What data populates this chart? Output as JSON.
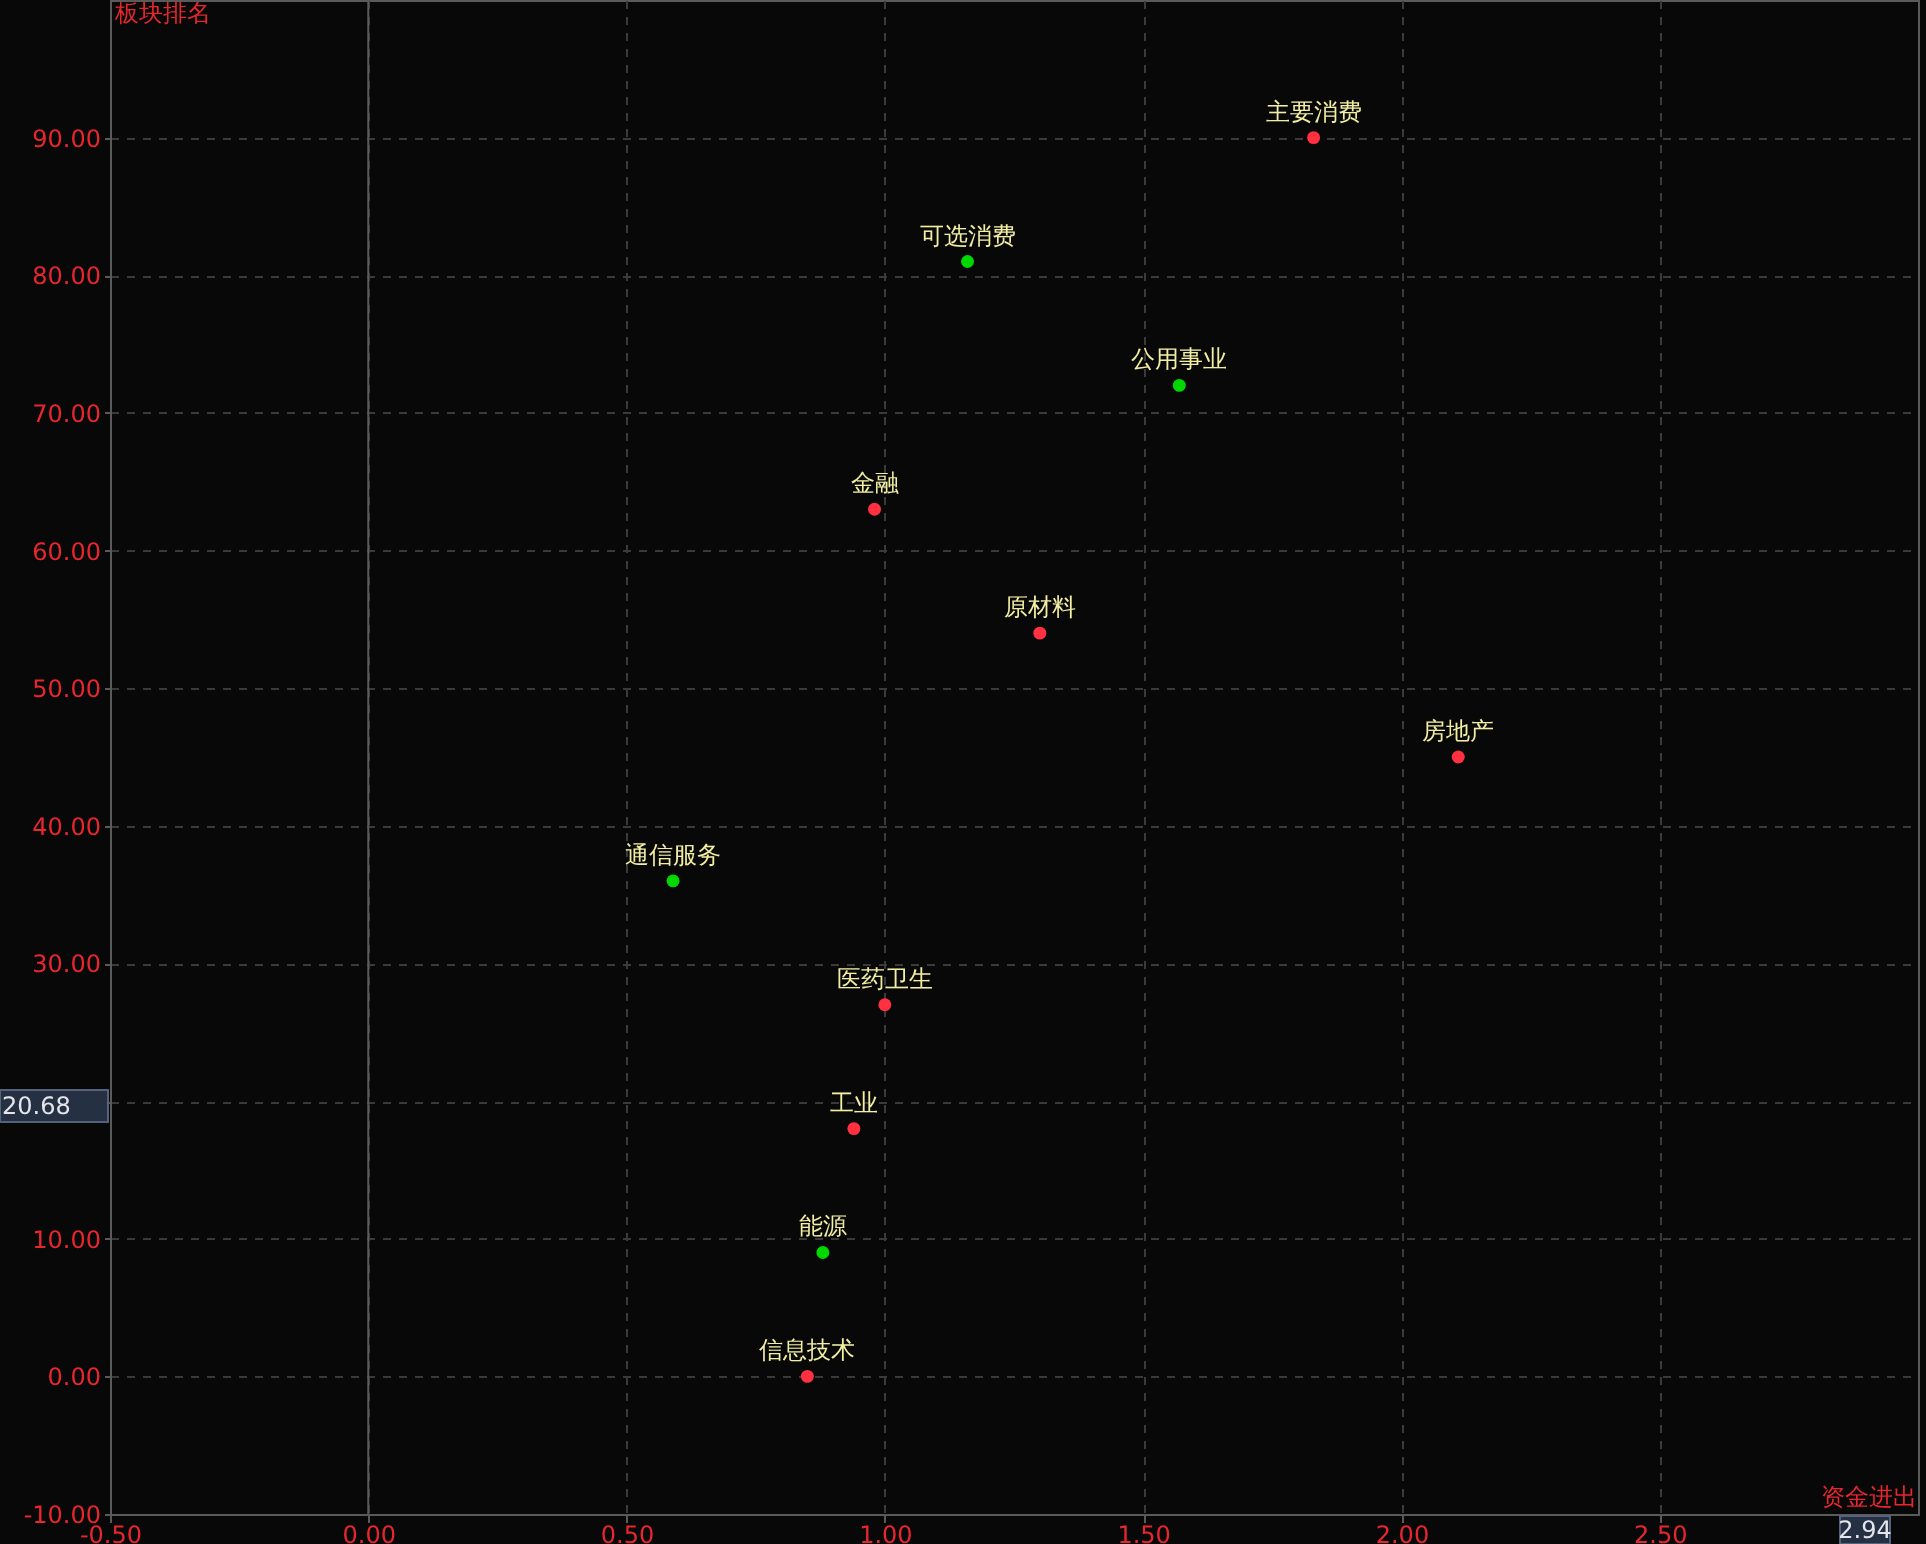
{
  "chart_data": {
    "type": "scatter",
    "xlabel": "资金进出",
    "ylabel": "板块排名",
    "x": [
      1.83,
      1.16,
      1.57,
      0.98,
      1.3,
      2.11,
      0.59,
      1.0,
      0.94,
      0.88,
      0.85
    ],
    "values": [
      90,
      81,
      72,
      63,
      54,
      45,
      36,
      27,
      18,
      9,
      0
    ],
    "colors": [
      "#ff3040",
      "#00d800",
      "#00d800",
      "#ff3040",
      "#ff3040",
      "#ff3040",
      "#00d800",
      "#ff3040",
      "#ff3040",
      "#00d800",
      "#ff3040"
    ],
    "xlim": [
      -0.5,
      3.0
    ],
    "ylim": [
      -10,
      100
    ],
    "xticks": [
      {
        "value": -0.5,
        "label": "-0.50"
      },
      {
        "value": 0,
        "label": "0.00"
      },
      {
        "value": 0.5,
        "label": "0.50"
      },
      {
        "value": 1,
        "label": "1.00"
      },
      {
        "value": 1.5,
        "label": "1.50"
      },
      {
        "value": 2,
        "label": "2.00"
      },
      {
        "value": 2.5,
        "label": "2.50"
      }
    ],
    "yticks": [
      {
        "value": -10,
        "label": "-10.00"
      },
      {
        "value": 0,
        "label": "0.00"
      },
      {
        "value": 10,
        "label": "10.00"
      },
      {
        "value": 20,
        "label": null
      },
      {
        "value": 30,
        "label": "30.00"
      },
      {
        "value": 40,
        "label": "40.00"
      },
      {
        "value": 50,
        "label": "50.00"
      },
      {
        "value": 60,
        "label": "60.00"
      },
      {
        "value": 70,
        "label": "70.00"
      },
      {
        "value": 80,
        "label": "80.00"
      },
      {
        "value": 90,
        "label": "90.00"
      }
    ],
    "grid": true,
    "marker": "circle",
    "ref_lines": [
      {
        "axis": "x",
        "value": 0,
        "color": "#5c5c5c",
        "line_style": "solid"
      }
    ],
    "annotations": [
      {
        "text": "主要消费",
        "x": 1.83,
        "y": 90
      },
      {
        "text": "可选消费",
        "x": 1.16,
        "y": 81
      },
      {
        "text": "公用事业",
        "x": 1.57,
        "y": 72
      },
      {
        "text": "金融",
        "x": 0.98,
        "y": 63
      },
      {
        "text": "原材料",
        "x": 1.3,
        "y": 54
      },
      {
        "text": "房地产",
        "x": 2.11,
        "y": 45
      },
      {
        "text": "通信服务",
        "x": 0.59,
        "y": 36
      },
      {
        "text": "医药卫生",
        "x": 1.0,
        "y": 27
      },
      {
        "text": "工业",
        "x": 0.94,
        "y": 18
      },
      {
        "text": "能源",
        "x": 0.88,
        "y": 9
      },
      {
        "text": "信息技术",
        "x": 0.85,
        "y": 0
      },
      "20.68",
      "2.94"
    ]
  }
}
